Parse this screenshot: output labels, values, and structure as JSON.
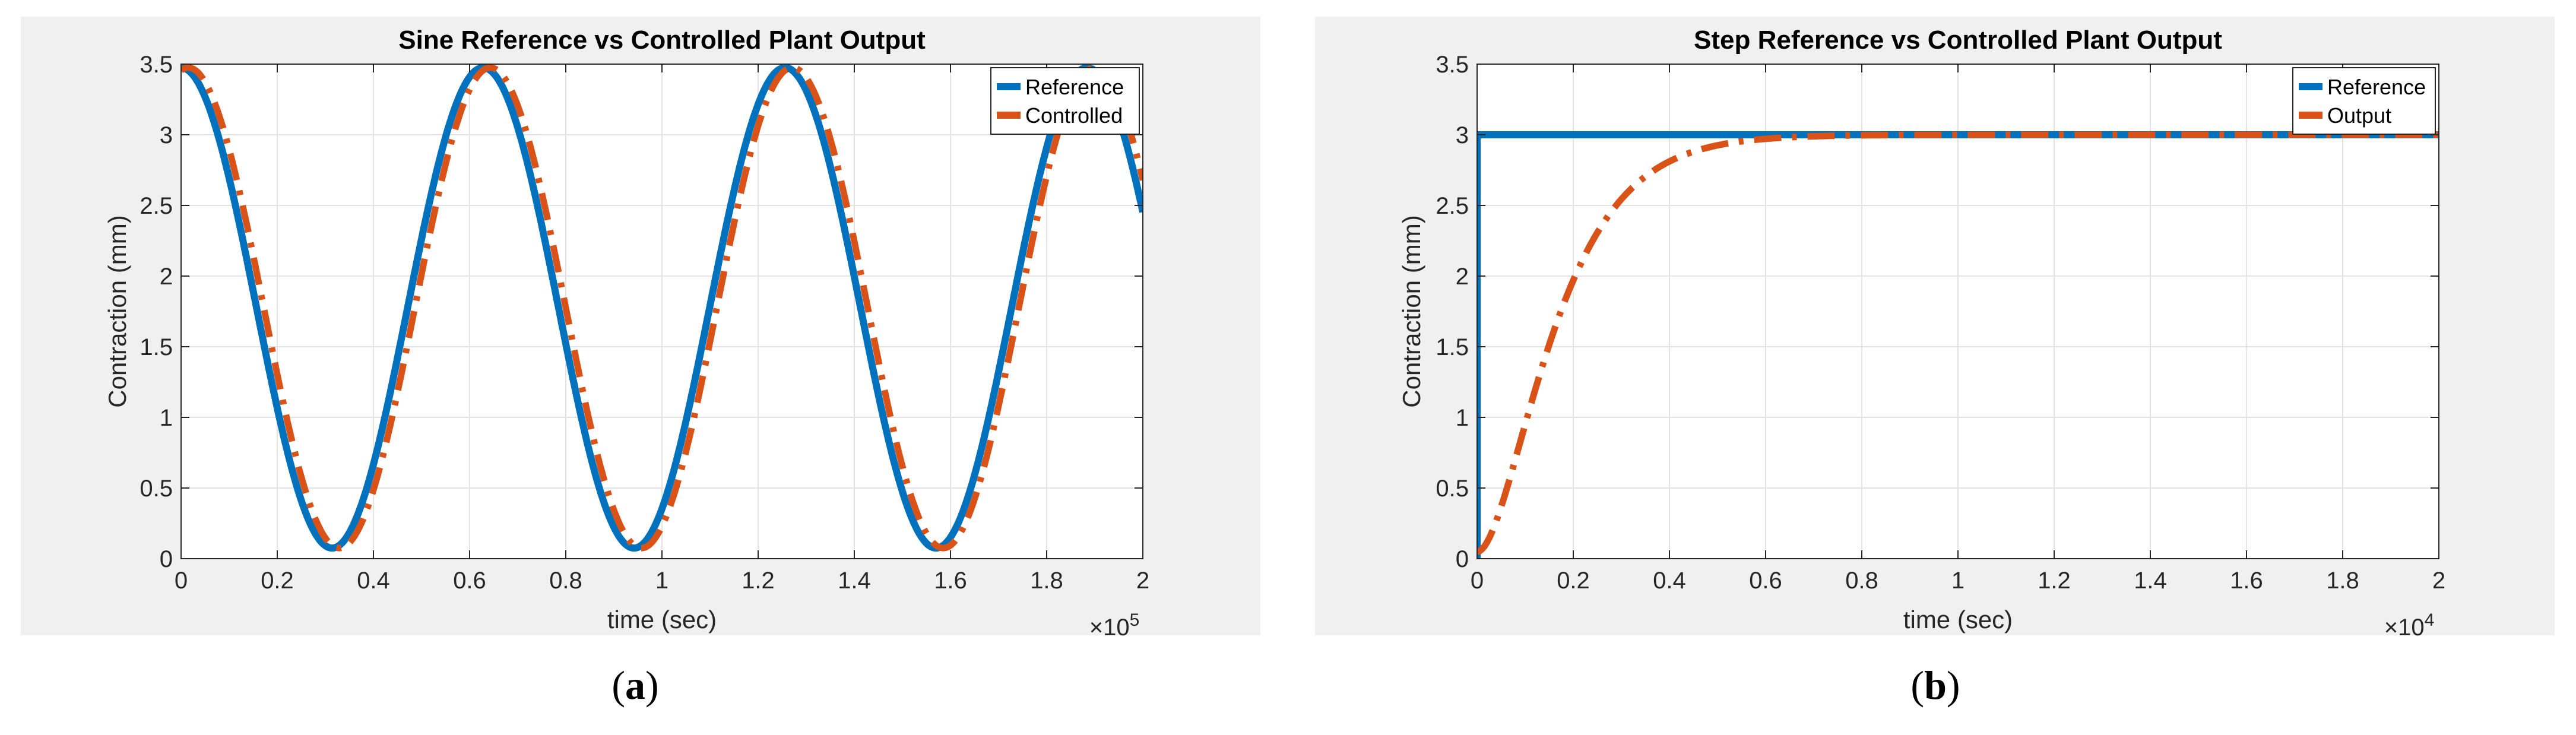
{
  "colors": {
    "reference": "#0072BD",
    "output": "#D95319",
    "panel_bg": "#f0f0f0",
    "grid": "#e3e3e3"
  },
  "captions": {
    "a": "a",
    "b": "b"
  },
  "chart_data": [
    {
      "id": "a",
      "type": "line",
      "title": "Sine Reference vs Controlled Plant Output",
      "xlabel": "time (sec)",
      "ylabel": "Contraction (mm)",
      "xlim": [
        0,
        2
      ],
      "ylim": [
        0,
        3.5
      ],
      "x_multiplier": "×10",
      "x_multiplier_exp": "5",
      "xticks": [
        "0",
        "0.2",
        "0.4",
        "0.6",
        "0.8",
        "1",
        "1.2",
        "1.4",
        "1.6",
        "1.8",
        "2"
      ],
      "yticks": [
        "0",
        "0.5",
        "1",
        "1.5",
        "2",
        "2.5",
        "3",
        "3.5"
      ],
      "grid": true,
      "legend_position": "top-right",
      "series": [
        {
          "name": "Reference",
          "style": "solid",
          "function": "sine",
          "mean": 1.775,
          "amplitude": 1.7,
          "period": 0.628,
          "phase_x": 0.471,
          "x_end": 2.0
        },
        {
          "name": "Controlled",
          "style": "dash-dot",
          "function": "sine",
          "mean": 1.775,
          "amplitude": 1.7,
          "period": 0.628,
          "phase_x": 0.486,
          "x_end": 2.0
        }
      ]
    },
    {
      "id": "b",
      "type": "line",
      "title": "Step Reference vs Controlled Plant Output",
      "xlabel": "time (sec)",
      "ylabel": "Contraction (mm)",
      "xlim": [
        0,
        2
      ],
      "ylim": [
        0,
        3.5
      ],
      "x_multiplier": "×10",
      "x_multiplier_exp": "4",
      "xticks": [
        "0",
        "0.2",
        "0.4",
        "0.6",
        "0.8",
        "1",
        "1.2",
        "1.4",
        "1.6",
        "1.8",
        "2"
      ],
      "yticks": [
        "0",
        "0.5",
        "1",
        "1.5",
        "2",
        "2.5",
        "3",
        "3.5"
      ],
      "grid": true,
      "legend_position": "top-right",
      "series": [
        {
          "name": "Reference",
          "style": "solid",
          "function": "step",
          "final": 3.0,
          "x_end": 2.0
        },
        {
          "name": "Output",
          "style": "dash-dot",
          "function": "second-order",
          "start": 0.05,
          "final": 3.0,
          "time_constant": 0.09,
          "x_end": 2.0
        }
      ]
    }
  ]
}
